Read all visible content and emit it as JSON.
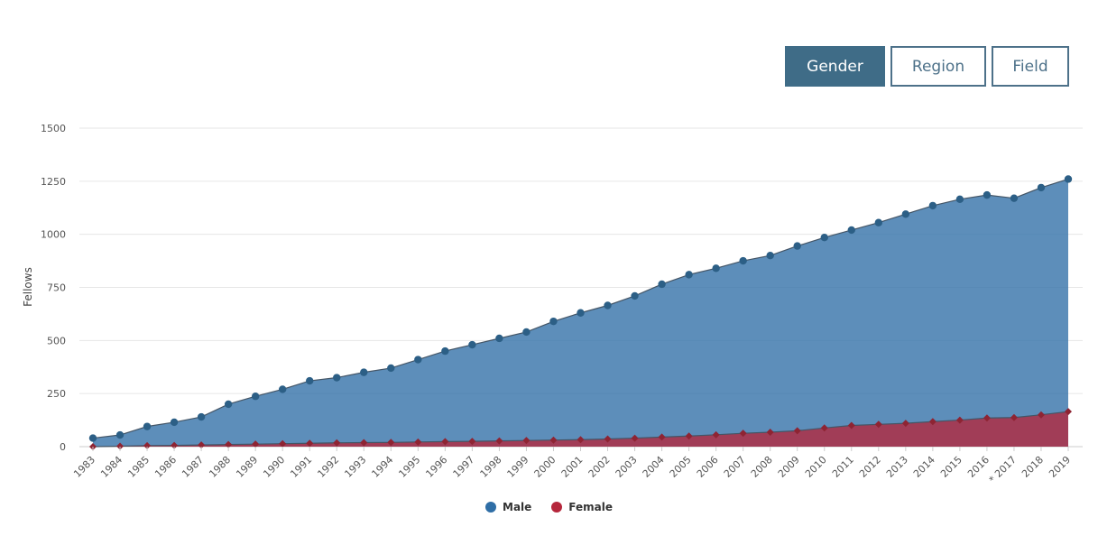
{
  "toolbar": {
    "gender_label": "Gender",
    "region_label": "Region",
    "field_label": "Field",
    "active": "gender"
  },
  "chart_data": {
    "type": "area",
    "stacked": false,
    "ylabel": "Fellows",
    "xlabel": "",
    "ylim": [
      0,
      1500
    ],
    "yticks": [
      0,
      250,
      500,
      750,
      1000,
      1250,
      1500
    ],
    "grid": true,
    "legend_position": "bottom-center",
    "categories": [
      "1983",
      "1984",
      "1985",
      "1986",
      "1987",
      "1988",
      "1989",
      "1990",
      "1991",
      "1992",
      "1993",
      "1994",
      "1995",
      "1996",
      "1997",
      "1998",
      "1999",
      "2000",
      "2001",
      "2002",
      "2003",
      "2004",
      "2005",
      "2006",
      "2007",
      "2008",
      "2009",
      "2010",
      "2011",
      "2012",
      "2013",
      "2014",
      "2015",
      "2016",
      "* 2017",
      "2018",
      "2019"
    ],
    "series": [
      {
        "name": "Male",
        "color": "#2f6ea6",
        "marker": "circle",
        "values": [
          40,
          55,
          95,
          115,
          140,
          200,
          237,
          270,
          310,
          325,
          350,
          370,
          410,
          450,
          480,
          510,
          540,
          590,
          630,
          665,
          710,
          765,
          810,
          840,
          875,
          900,
          945,
          985,
          1020,
          1055,
          1095,
          1135,
          1165,
          1185,
          1170,
          1220,
          1260
        ]
      },
      {
        "name": "Female",
        "color": "#b5263b",
        "marker": "diamond",
        "values": [
          0,
          2,
          5,
          6,
          8,
          10,
          12,
          14,
          16,
          18,
          19,
          20,
          22,
          24,
          25,
          27,
          29,
          31,
          33,
          36,
          40,
          45,
          50,
          56,
          63,
          68,
          75,
          88,
          100,
          105,
          110,
          118,
          125,
          135,
          137,
          150,
          165
        ]
      }
    ]
  }
}
